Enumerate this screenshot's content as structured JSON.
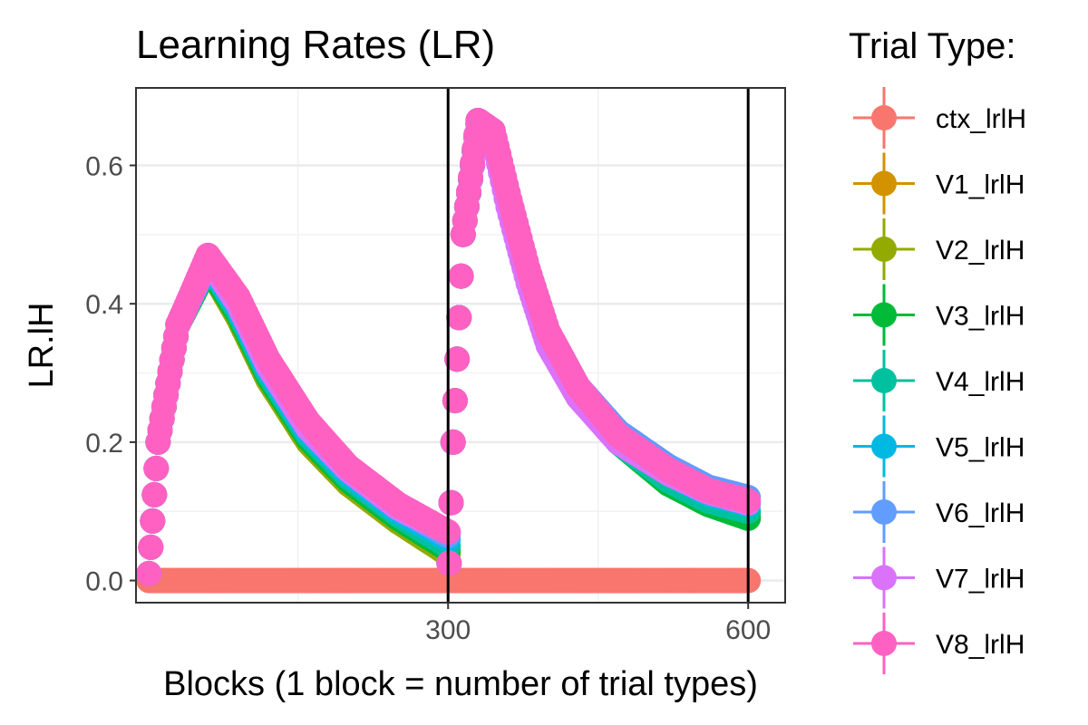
{
  "chart_data": {
    "type": "scatter",
    "title": "Learning Rates (LR)",
    "xlabel": "Blocks (1 block = number of trial types)",
    "ylabel": "LR.lH",
    "xlim": [
      -12,
      637
    ],
    "ylim": [
      -0.032,
      0.712
    ],
    "xticks": [
      {
        "value": 300,
        "label": "300"
      },
      {
        "value": 600,
        "label": "600"
      }
    ],
    "xminor": [
      150,
      450
    ],
    "yticks": [
      {
        "value": 0.0,
        "label": "0.0"
      },
      {
        "value": 0.2,
        "label": "0.2"
      },
      {
        "value": 0.4,
        "label": "0.4"
      },
      {
        "value": 0.6,
        "label": "0.6"
      }
    ],
    "yminor": [
      0.1,
      0.3,
      0.5
    ],
    "vlines": [
      300,
      600
    ],
    "grid": true,
    "legend": {
      "title": "Trial Type:",
      "position": "right"
    },
    "series": [
      {
        "name": "ctx_lrlH",
        "color": "#F8766D",
        "points": [
          [
            1,
            0
          ],
          [
            600,
            0
          ]
        ]
      },
      {
        "name": "V1_lrlH",
        "color": "#D39200",
        "points": [
          [
            1,
            0.01
          ],
          [
            10,
            0.2
          ],
          [
            30,
            0.37
          ],
          [
            60,
            0.455
          ],
          [
            90,
            0.38
          ],
          [
            120,
            0.29
          ],
          [
            160,
            0.2
          ],
          [
            200,
            0.14
          ],
          [
            250,
            0.085
          ],
          [
            300,
            0.04
          ],
          [
            301,
            0.025
          ],
          [
            305,
            0.2
          ],
          [
            315,
            0.5
          ],
          [
            330,
            0.66
          ],
          [
            345,
            0.64
          ],
          [
            360,
            0.55
          ],
          [
            380,
            0.44
          ],
          [
            400,
            0.35
          ],
          [
            430,
            0.27
          ],
          [
            470,
            0.2
          ],
          [
            520,
            0.145
          ],
          [
            560,
            0.115
          ],
          [
            600,
            0.098
          ]
        ]
      },
      {
        "name": "V2_lrlH",
        "color": "#93AA00",
        "points": [
          [
            1,
            0.01
          ],
          [
            10,
            0.2
          ],
          [
            30,
            0.37
          ],
          [
            60,
            0.455
          ],
          [
            90,
            0.38
          ],
          [
            120,
            0.29
          ],
          [
            160,
            0.2
          ],
          [
            200,
            0.14
          ],
          [
            250,
            0.085
          ],
          [
            300,
            0.038
          ],
          [
            301,
            0.025
          ],
          [
            305,
            0.2
          ],
          [
            315,
            0.5
          ],
          [
            330,
            0.66
          ],
          [
            345,
            0.64
          ],
          [
            360,
            0.55
          ],
          [
            380,
            0.44
          ],
          [
            400,
            0.35
          ],
          [
            430,
            0.27
          ],
          [
            470,
            0.2
          ],
          [
            520,
            0.145
          ],
          [
            560,
            0.113
          ],
          [
            600,
            0.095
          ]
        ]
      },
      {
        "name": "V3_lrlH",
        "color": "#00BA38",
        "points": [
          [
            1,
            0.01
          ],
          [
            10,
            0.2
          ],
          [
            30,
            0.37
          ],
          [
            60,
            0.455
          ],
          [
            90,
            0.385
          ],
          [
            120,
            0.295
          ],
          [
            160,
            0.205
          ],
          [
            200,
            0.145
          ],
          [
            250,
            0.09
          ],
          [
            300,
            0.045
          ],
          [
            301,
            0.025
          ],
          [
            305,
            0.2
          ],
          [
            315,
            0.5
          ],
          [
            330,
            0.66
          ],
          [
            345,
            0.64
          ],
          [
            360,
            0.55
          ],
          [
            380,
            0.44
          ],
          [
            400,
            0.35
          ],
          [
            430,
            0.27
          ],
          [
            470,
            0.2
          ],
          [
            520,
            0.14
          ],
          [
            560,
            0.11
          ],
          [
            600,
            0.09
          ]
        ]
      },
      {
        "name": "V4_lrlH",
        "color": "#00C19F",
        "points": [
          [
            1,
            0.01
          ],
          [
            10,
            0.2
          ],
          [
            30,
            0.37
          ],
          [
            60,
            0.46
          ],
          [
            90,
            0.39
          ],
          [
            120,
            0.3
          ],
          [
            160,
            0.21
          ],
          [
            200,
            0.15
          ],
          [
            250,
            0.095
          ],
          [
            300,
            0.05
          ],
          [
            301,
            0.025
          ],
          [
            305,
            0.2
          ],
          [
            315,
            0.5
          ],
          [
            330,
            0.66
          ],
          [
            345,
            0.64
          ],
          [
            360,
            0.55
          ],
          [
            380,
            0.44
          ],
          [
            400,
            0.35
          ],
          [
            430,
            0.27
          ],
          [
            470,
            0.2
          ],
          [
            520,
            0.145
          ],
          [
            560,
            0.115
          ],
          [
            600,
            0.1
          ]
        ]
      },
      {
        "name": "V5_lrlH",
        "color": "#00B9E3",
        "points": [
          [
            1,
            0.01
          ],
          [
            10,
            0.2
          ],
          [
            30,
            0.37
          ],
          [
            60,
            0.46
          ],
          [
            90,
            0.395
          ],
          [
            120,
            0.305
          ],
          [
            160,
            0.215
          ],
          [
            200,
            0.155
          ],
          [
            250,
            0.1
          ],
          [
            300,
            0.06
          ],
          [
            301,
            0.025
          ],
          [
            305,
            0.2
          ],
          [
            315,
            0.5
          ],
          [
            330,
            0.66
          ],
          [
            345,
            0.645
          ],
          [
            360,
            0.555
          ],
          [
            380,
            0.445
          ],
          [
            400,
            0.355
          ],
          [
            430,
            0.275
          ],
          [
            470,
            0.205
          ],
          [
            520,
            0.155
          ],
          [
            560,
            0.125
          ],
          [
            600,
            0.11
          ]
        ]
      },
      {
        "name": "V6_lrlH",
        "color": "#619CFF",
        "points": [
          [
            1,
            0.01
          ],
          [
            10,
            0.2
          ],
          [
            30,
            0.37
          ],
          [
            60,
            0.465
          ],
          [
            90,
            0.4
          ],
          [
            120,
            0.31
          ],
          [
            160,
            0.22
          ],
          [
            200,
            0.16
          ],
          [
            250,
            0.105
          ],
          [
            300,
            0.065
          ],
          [
            301,
            0.025
          ],
          [
            305,
            0.2
          ],
          [
            315,
            0.5
          ],
          [
            330,
            0.665
          ],
          [
            345,
            0.65
          ],
          [
            360,
            0.56
          ],
          [
            380,
            0.45
          ],
          [
            400,
            0.36
          ],
          [
            430,
            0.28
          ],
          [
            470,
            0.215
          ],
          [
            520,
            0.165
          ],
          [
            560,
            0.135
          ],
          [
            600,
            0.12
          ]
        ]
      },
      {
        "name": "V7_lrlH",
        "color": "#DB72FB",
        "points": [
          [
            1,
            0.01
          ],
          [
            10,
            0.2
          ],
          [
            30,
            0.37
          ],
          [
            60,
            0.465
          ],
          [
            90,
            0.4
          ],
          [
            120,
            0.31
          ],
          [
            160,
            0.22
          ],
          [
            200,
            0.16
          ],
          [
            250,
            0.105
          ],
          [
            300,
            0.07
          ],
          [
            301,
            0.025
          ],
          [
            305,
            0.2
          ],
          [
            315,
            0.5
          ],
          [
            330,
            0.66
          ],
          [
            345,
            0.64
          ],
          [
            360,
            0.54
          ],
          [
            380,
            0.43
          ],
          [
            400,
            0.34
          ],
          [
            430,
            0.265
          ],
          [
            470,
            0.2
          ],
          [
            520,
            0.155
          ],
          [
            560,
            0.128
          ],
          [
            600,
            0.112
          ]
        ]
      },
      {
        "name": "V8_lrlH",
        "color": "#FF61C3",
        "points": [
          [
            1,
            0.01
          ],
          [
            10,
            0.2
          ],
          [
            30,
            0.37
          ],
          [
            60,
            0.47
          ],
          [
            90,
            0.41
          ],
          [
            120,
            0.32
          ],
          [
            160,
            0.23
          ],
          [
            200,
            0.165
          ],
          [
            250,
            0.11
          ],
          [
            300,
            0.07
          ],
          [
            301,
            0.025
          ],
          [
            305,
            0.2
          ],
          [
            315,
            0.5
          ],
          [
            330,
            0.665
          ],
          [
            345,
            0.65
          ],
          [
            360,
            0.56
          ],
          [
            380,
            0.45
          ],
          [
            400,
            0.36
          ],
          [
            430,
            0.28
          ],
          [
            470,
            0.21
          ],
          [
            520,
            0.16
          ],
          [
            560,
            0.13
          ],
          [
            600,
            0.115
          ]
        ]
      }
    ]
  }
}
